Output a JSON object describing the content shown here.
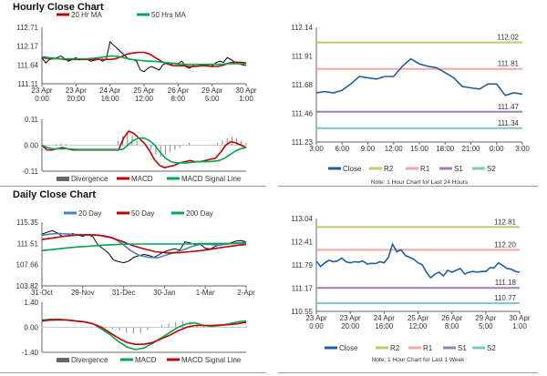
{
  "sections": {
    "hourly_title": "Hourly Close Chart",
    "daily_title": "Daily Close Chart"
  },
  "chart_data": [
    {
      "id": "hourly_price",
      "type": "line",
      "legend": [
        "20 Hr MA",
        "50 Hrs MA"
      ],
      "colors": [
        "#c00000",
        "#00a651"
      ],
      "yticks": [
        "112.71",
        "112.17",
        "111.64",
        "111.11"
      ],
      "ylim": [
        111.11,
        112.71
      ],
      "xticks": [
        [
          "23 Apr",
          "0:00"
        ],
        [
          "23 Apr",
          "20:00"
        ],
        [
          "24 Apr",
          "16:00"
        ],
        [
          "25 Apr",
          "12:00"
        ],
        [
          "26 Apr",
          "8:00"
        ],
        [
          "29 Apr",
          "5:00"
        ],
        [
          "30 Apr",
          "1:00"
        ]
      ],
      "series": [
        {
          "name": "Close",
          "color": "#000",
          "values": [
            111.85,
            111.7,
            111.8,
            111.82,
            111.85,
            111.9,
            111.82,
            111.75,
            111.8,
            111.85,
            111.78,
            111.82,
            111.8,
            111.75,
            111.78,
            111.82,
            111.75,
            111.8,
            112.3,
            112.2,
            112.1,
            112.0,
            111.9,
            111.8,
            111.8,
            111.75,
            111.5,
            111.45,
            111.55,
            111.6,
            111.55,
            111.5,
            111.65,
            111.7,
            111.65,
            111.7,
            111.68,
            111.75,
            111.6,
            111.55,
            111.62,
            111.6,
            111.62,
            111.65,
            111.6,
            111.62,
            111.7,
            111.75,
            111.72,
            111.85,
            111.8,
            111.72,
            111.68,
            111.65,
            111.62
          ]
        },
        {
          "name": "20 Hr MA",
          "color": "#c00000",
          "values": [
            111.85,
            111.83,
            111.82,
            111.82,
            111.8,
            111.8,
            111.8,
            111.8,
            111.8,
            111.8,
            111.8,
            111.8,
            111.8,
            111.82,
            111.88,
            111.95,
            111.98,
            112.0,
            112.0,
            111.95,
            111.85,
            111.75,
            111.68,
            111.63,
            111.62,
            111.62,
            111.6,
            111.6,
            111.62,
            111.62,
            111.6,
            111.6,
            111.64,
            111.7,
            111.72,
            111.72,
            111.7
          ]
        },
        {
          "name": "50 Hrs MA",
          "color": "#00a651",
          "values": [
            111.88,
            111.85,
            111.83,
            111.82,
            111.82,
            111.82,
            111.82,
            111.82,
            111.83,
            111.85,
            111.88,
            111.9,
            111.88,
            111.84,
            111.8,
            111.78,
            111.76,
            111.75,
            111.74,
            111.72,
            111.7,
            111.68,
            111.66,
            111.66,
            111.66,
            111.66,
            111.66,
            111.66,
            111.66,
            111.68,
            111.68,
            111.68,
            111.68
          ]
        }
      ]
    },
    {
      "id": "hourly_macd",
      "type": "line",
      "legend": [
        "Divergence",
        "MACD",
        "MACD Signal Line"
      ],
      "colors": [
        "#555",
        "#c00000",
        "#00a651"
      ],
      "yticks": [
        "0.11",
        "0.00",
        "-0.11"
      ],
      "ylim": [
        -0.11,
        0.11
      ],
      "series": [
        {
          "name": "Divergence",
          "type": "bar",
          "color": "#888",
          "values": [
            0,
            0,
            0,
            0.005,
            0.008,
            0.005,
            0,
            0,
            0,
            0,
            0,
            0,
            0,
            0,
            0,
            0,
            0.02,
            0.04,
            0.05,
            0.04,
            0.02,
            0,
            -0.01,
            -0.02,
            -0.04,
            -0.05,
            -0.04,
            -0.03,
            -0.02,
            -0.01,
            0,
            0.01,
            0,
            0,
            0,
            0,
            0,
            0.01,
            0.02,
            0.03,
            0.035,
            0.03,
            0.02,
            0.01
          ]
        },
        {
          "name": "MACD",
          "color": "#c00000",
          "values": [
            0,
            -0.02,
            -0.02,
            -0.015,
            -0.01,
            -0.015,
            -0.02,
            -0.02,
            -0.02,
            -0.02,
            -0.02,
            -0.02,
            -0.02,
            -0.02,
            -0.02,
            -0.02,
            0.03,
            0.06,
            0.05,
            0.03,
            0.01,
            -0.02,
            -0.06,
            -0.085,
            -0.095,
            -0.09,
            -0.085,
            -0.075,
            -0.07,
            -0.065,
            -0.07,
            -0.07,
            -0.065,
            -0.06,
            -0.055,
            -0.03,
            0,
            0.015,
            0.01,
            0,
            -0.01
          ]
        },
        {
          "name": "MACD Signal Line",
          "color": "#00a651",
          "values": [
            0,
            -0.01,
            -0.015,
            -0.015,
            -0.015,
            -0.015,
            -0.017,
            -0.018,
            -0.018,
            -0.018,
            -0.018,
            -0.018,
            -0.018,
            -0.018,
            -0.018,
            -0.018,
            0,
            0.02,
            0.03,
            0.03,
            0.02,
            0,
            -0.03,
            -0.055,
            -0.07,
            -0.075,
            -0.075,
            -0.075,
            -0.072,
            -0.07,
            -0.07,
            -0.07,
            -0.068,
            -0.065,
            -0.055,
            -0.04,
            -0.025,
            -0.015,
            -0.01
          ]
        }
      ]
    },
    {
      "id": "hourly_24h",
      "type": "line",
      "legend": [
        "Close",
        "R2",
        "R1",
        "S1",
        "S2"
      ],
      "colors": [
        "#1f5fa0",
        "#b5cf6b",
        "#f2a7a7",
        "#9d7fb3",
        "#7ec8c8"
      ],
      "yticks": [
        "112.14",
        "111.91",
        "111.68",
        "111.46",
        "111.23"
      ],
      "ylim": [
        111.23,
        112.14
      ],
      "xticks": [
        [
          "3:00"
        ],
        [
          "6:00"
        ],
        [
          "9:00"
        ],
        [
          "12:00"
        ],
        [
          "15:00"
        ],
        [
          "18:00"
        ],
        [
          "21:00"
        ],
        [
          "0:00"
        ],
        [
          "3:00"
        ]
      ],
      "levels": [
        {
          "name": "R2",
          "value": 112.02,
          "label": "112.02"
        },
        {
          "name": "R1",
          "value": 111.81,
          "label": "111.81"
        },
        {
          "name": "S1",
          "value": 111.47,
          "label": "111.47"
        },
        {
          "name": "S2",
          "value": 111.34,
          "label": "111.34"
        }
      ],
      "series": [
        {
          "name": "Close",
          "color": "#1f5fa0",
          "values": [
            111.62,
            111.63,
            111.62,
            111.64,
            111.69,
            111.75,
            111.74,
            111.73,
            111.75,
            111.75,
            111.83,
            111.89,
            111.85,
            111.83,
            111.82,
            111.78,
            111.74,
            111.67,
            111.66,
            111.65,
            111.69,
            111.69,
            111.6,
            111.62,
            111.61
          ]
        }
      ],
      "note": "Note: 1 Hour Chart for Last 24 Hours"
    },
    {
      "id": "daily_price",
      "type": "line",
      "legend": [
        "20 Day",
        "50 Day",
        "200 Day"
      ],
      "colors": [
        "#4f81bd",
        "#c00000",
        "#00a651"
      ],
      "yticks": [
        "115.35",
        "111.51",
        "107.66",
        "103.82"
      ],
      "ylim": [
        103.82,
        115.35
      ],
      "xticks": [
        [
          "31-Oct"
        ],
        [
          "29-Nov"
        ],
        [
          "31-Dec"
        ],
        [
          "30-Jan"
        ],
        [
          "1-Mar"
        ],
        [
          "2-Apr"
        ]
      ],
      "series": [
        {
          "name": "Close",
          "color": "#000",
          "values": [
            113.2,
            113.5,
            113.8,
            113.4,
            112.8,
            112.9,
            113.3,
            113.0,
            112.8,
            113.1,
            112.7,
            111.2,
            110.5,
            109.8,
            108.5,
            108.2,
            108.0,
            108.3,
            109.0,
            109.3,
            109.5,
            109.3,
            109.0,
            109.5,
            110.0,
            110.3,
            110.5,
            110.3,
            111.8,
            111.6,
            111.3,
            111.4,
            110.6,
            110.5,
            111.0,
            111.3,
            111.4,
            111.6,
            111.9,
            112.0,
            111.8
          ]
        },
        {
          "name": "20 Day",
          "color": "#4f81bd",
          "values": [
            113.0,
            113.2,
            113.3,
            113.2,
            113.1,
            113.0,
            113.0,
            112.9,
            112.5,
            111.5,
            110.2,
            109.3,
            109.0,
            108.9,
            109.4,
            109.9,
            110.4,
            111.0,
            111.4,
            111.3,
            111.2,
            111.4,
            111.6,
            111.7
          ]
        },
        {
          "name": "50 Day",
          "color": "#c00000",
          "values": [
            112.2,
            112.5,
            112.8,
            113.0,
            113.1,
            113.0,
            112.6,
            111.9,
            111.1,
            110.5,
            110.0,
            109.8,
            109.8,
            110.0,
            110.2,
            110.5,
            110.8,
            111.1,
            111.3
          ]
        },
        {
          "name": "200 Day",
          "color": "#00a651",
          "values": [
            110.2,
            110.5,
            110.8,
            111.0,
            111.2,
            111.35,
            111.4,
            111.4,
            111.4,
            111.4,
            111.45,
            111.5,
            111.5,
            111.5
          ]
        }
      ]
    },
    {
      "id": "daily_macd",
      "type": "line",
      "legend": [
        "Divergence",
        "MACD",
        "MACD Signal Line"
      ],
      "colors": [
        "#555",
        "#00a651",
        "#c00000"
      ],
      "yticks": [
        "1.40",
        "0.00",
        "-1.40"
      ],
      "ylim": [
        -1.4,
        1.4
      ],
      "series": [
        {
          "name": "Divergence",
          "type": "bar",
          "color": "#888",
          "values": [
            0,
            0,
            0,
            0,
            0,
            0,
            0,
            0,
            0,
            -0.05,
            -0.1,
            -0.2,
            -0.3,
            -0.35,
            -0.3,
            -0.15,
            0,
            0.1,
            0.2,
            0.3,
            0.35,
            0.3,
            0.15,
            0.05,
            0,
            0,
            0.02,
            0.05,
            0.05,
            0.05
          ]
        },
        {
          "name": "MACD",
          "color": "#00a651",
          "values": [
            0.4,
            0.45,
            0.45,
            0.4,
            0.35,
            0.3,
            0.2,
            -0.1,
            -0.4,
            -0.8,
            -1.1,
            -1.25,
            -1.15,
            -0.9,
            -0.6,
            -0.3,
            0,
            0.2,
            0.25,
            0.1,
            0.05,
            0.1,
            0.2,
            0.3,
            0.35
          ]
        },
        {
          "name": "MACD Signal Line",
          "color": "#c00000",
          "values": [
            0.35,
            0.4,
            0.42,
            0.4,
            0.35,
            0.3,
            0.2,
            0,
            -0.3,
            -0.6,
            -0.85,
            -0.95,
            -0.95,
            -0.85,
            -0.65,
            -0.45,
            -0.2,
            0,
            0.1,
            0.1,
            0.1,
            0.12,
            0.15,
            0.2,
            0.28
          ]
        }
      ]
    },
    {
      "id": "weekly",
      "type": "line",
      "legend": [
        "Close",
        "R2",
        "R1",
        "S1",
        "S2"
      ],
      "colors": [
        "#1f5fa0",
        "#b5cf6b",
        "#f2a7a7",
        "#9d7fb3",
        "#7ec8c8"
      ],
      "yticks": [
        "113.04",
        "112.41",
        "111.79",
        "111.17",
        "110.55"
      ],
      "ylim": [
        110.55,
        113.04
      ],
      "xticks": [
        [
          "23 Apr",
          "0:00"
        ],
        [
          "23 Apr",
          "20:00"
        ],
        [
          "24 Apr",
          "16:00"
        ],
        [
          "25 Apr",
          "12:00"
        ],
        [
          "26 Apr",
          "8:00"
        ],
        [
          "29 Apr",
          "5:00"
        ],
        [
          "30 Apr",
          "1:00"
        ]
      ],
      "levels": [
        {
          "name": "R2",
          "value": 112.81,
          "label": "112.81"
        },
        {
          "name": "R1",
          "value": 112.2,
          "label": "112.20"
        },
        {
          "name": "S1",
          "value": 111.18,
          "label": "111.18"
        },
        {
          "name": "S2",
          "value": 110.77,
          "label": "110.77"
        }
      ],
      "series": [
        {
          "name": "Close",
          "color": "#1f5fa0",
          "values": [
            111.9,
            111.75,
            111.85,
            111.92,
            111.88,
            111.9,
            111.98,
            111.88,
            111.85,
            111.88,
            111.87,
            111.9,
            111.82,
            111.84,
            111.83,
            111.88,
            111.85,
            112.0,
            112.35,
            112.15,
            112.2,
            112.05,
            112.0,
            111.95,
            111.85,
            111.8,
            111.6,
            111.45,
            111.55,
            111.6,
            111.5,
            111.65,
            111.6,
            111.65,
            111.7,
            111.55,
            111.6,
            111.62,
            111.6,
            111.62,
            111.62,
            111.72,
            111.72,
            111.85,
            111.78,
            111.7,
            111.68,
            111.62,
            111.6
          ]
        }
      ],
      "note": "Note: 1 Hour Chart for Last 1 Week"
    }
  ]
}
